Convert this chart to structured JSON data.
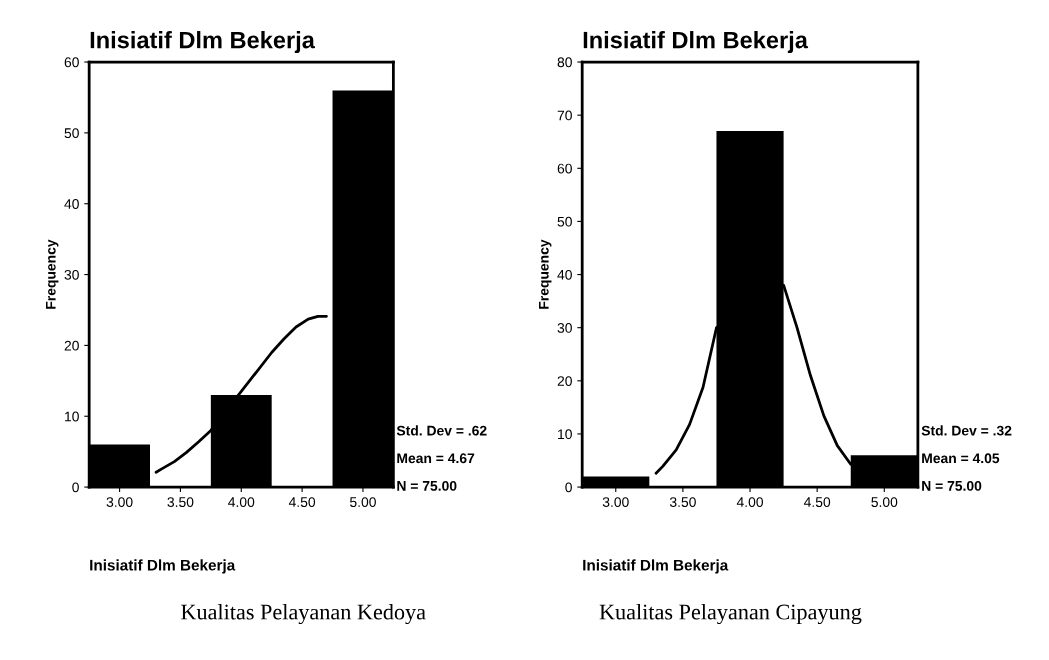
{
  "chart_data": [
    {
      "type": "histogram",
      "title": "Inisiatif Dlm Bekerja",
      "xlabel": "Inisiatif Dlm Bekerja",
      "ylabel": "Frequency",
      "bins": [
        2.75,
        3.25,
        3.75,
        4.25,
        4.75,
        5.25
      ],
      "series": [
        {
          "type": "line",
          "color": "#000000",
          "x": [
            3.3,
            3.35,
            3.45,
            3.55,
            3.65,
            3.75,
            4.25,
            4.35,
            4.45,
            4.55,
            4.63,
            4.7
          ],
          "values": [
            2.1,
            2.6,
            3.6,
            4.9,
            6.4,
            8,
            19,
            20.9,
            22.6,
            23.7,
            24.1,
            24.1
          ]
        },
        {
          "type": "histogram",
          "color": "#000000",
          "values": [
            6,
            0,
            13,
            0,
            56
          ]
        }
      ],
      "xlim": [
        2.75,
        5.25
      ],
      "ylim": [
        0,
        60
      ],
      "xticks": [
        {
          "value": 3,
          "label": "3.00"
        },
        {
          "value": 3.5,
          "label": "3.50"
        },
        {
          "value": 4,
          "label": "4.00"
        },
        {
          "value": 4.5,
          "label": "4.50"
        },
        {
          "value": 5,
          "label": "5.00"
        }
      ],
      "yticks": [
        0,
        10,
        20,
        30,
        40,
        50,
        60
      ],
      "grid": false,
      "legend": false,
      "annotations": [
        "Std. Dev = .62",
        "Mean = 4.67",
        "N = 75.00",
        "Kualitas Pelayanan Kedoya"
      ]
    },
    {
      "type": "histogram",
      "title": "Inisiatif Dlm Bekerja",
      "xlabel": "Inisiatif Dlm Bekerja",
      "ylabel": "Frequency",
      "bins": [
        2.75,
        3.25,
        3.75,
        4.25,
        4.75,
        5.25
      ],
      "series": [
        {
          "type": "line",
          "color": "#000000",
          "x": [
            3.3,
            3.35,
            3.45,
            3.55,
            3.65,
            3.75,
            4.25,
            4.35,
            4.45,
            4.55,
            4.65,
            4.75
          ],
          "values": [
            2.6,
            3.9,
            7,
            11.8,
            18.8,
            30,
            38,
            30,
            21,
            13.4,
            7.8,
            4.3
          ]
        },
        {
          "type": "histogram",
          "color": "#000000",
          "values": [
            2,
            0,
            67,
            0,
            6
          ]
        }
      ],
      "xlim": [
        2.75,
        5.25
      ],
      "ylim": [
        0,
        80
      ],
      "xticks": [
        {
          "value": 3,
          "label": "3.00"
        },
        {
          "value": 3.5,
          "label": "3.50"
        },
        {
          "value": 4,
          "label": "4.00"
        },
        {
          "value": 4.5,
          "label": "4.50"
        },
        {
          "value": 5,
          "label": "5.00"
        }
      ],
      "yticks": [
        0,
        10,
        20,
        30,
        40,
        50,
        60,
        70,
        80
      ],
      "grid": false,
      "legend": false,
      "annotations": [
        "Std. Dev = .32",
        "Mean = 4.05",
        "N = 75.00",
        "Kualitas Pelayanan Cipayung"
      ]
    }
  ]
}
